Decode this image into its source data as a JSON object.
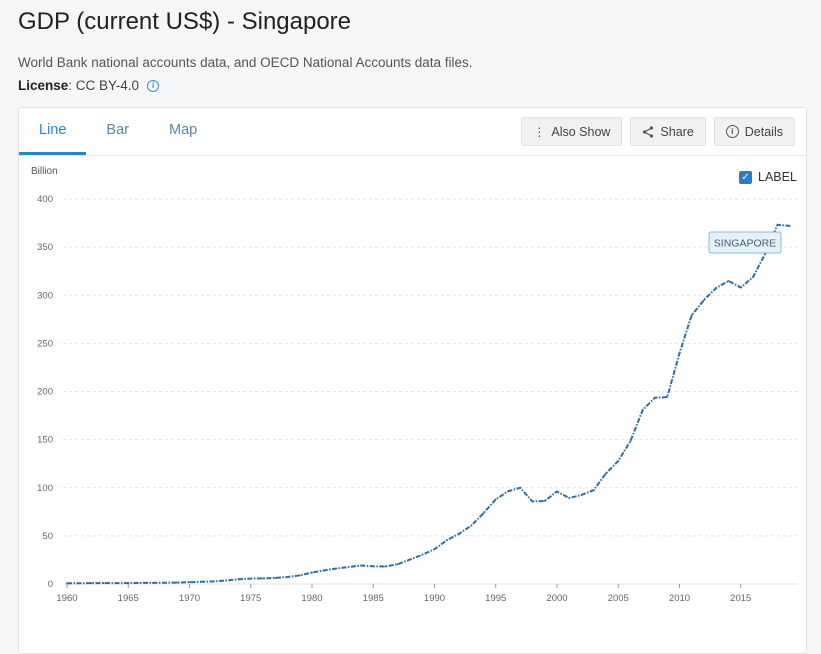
{
  "page": {
    "title": "GDP (current US$) - Singapore",
    "source": "World Bank national accounts data, and OECD National Accounts data files.",
    "license_label": "License",
    "license_value": " : CC BY-4.0",
    "info_icon": "info-icon"
  },
  "tabs": [
    {
      "label": "Line",
      "active": true
    },
    {
      "label": "Bar",
      "active": false
    },
    {
      "label": "Map",
      "active": false
    }
  ],
  "toolbar": {
    "also_show_label": "Also Show",
    "share_label": "Share",
    "details_label": "Details"
  },
  "label_toggle": {
    "label": "LABEL",
    "checked": true
  },
  "colors": {
    "accent": "#2a86c4",
    "line": "#2f6e9e",
    "grid": "#e3e3e3"
  },
  "chart_data": {
    "type": "line",
    "ylabel": "Billion",
    "xlabel": "",
    "ylim": [
      0,
      400
    ],
    "xlim": [
      1960,
      2020
    ],
    "yticks": [
      0,
      50,
      100,
      150,
      200,
      250,
      300,
      350,
      400
    ],
    "xticks": [
      1960,
      1965,
      1970,
      1975,
      1980,
      1985,
      1990,
      1995,
      2000,
      2005,
      2010,
      2015
    ],
    "grid": true,
    "series": [
      {
        "name": "SINGAPORE",
        "x": [
          1960,
          1961,
          1962,
          1963,
          1964,
          1965,
          1966,
          1967,
          1968,
          1969,
          1970,
          1971,
          1972,
          1973,
          1974,
          1975,
          1976,
          1977,
          1978,
          1979,
          1980,
          1981,
          1982,
          1983,
          1984,
          1985,
          1986,
          1987,
          1988,
          1989,
          1990,
          1991,
          1992,
          1993,
          1994,
          1995,
          1996,
          1997,
          1998,
          1999,
          2000,
          2001,
          2002,
          2003,
          2004,
          2005,
          2006,
          2007,
          2008,
          2009,
          2010,
          2011,
          2012,
          2013,
          2014,
          2015,
          2016,
          2017,
          2018,
          2019
        ],
        "values": [
          0.7,
          0.8,
          0.9,
          1.0,
          0.9,
          1.0,
          1.1,
          1.2,
          1.3,
          1.5,
          1.9,
          2.3,
          2.7,
          3.7,
          4.9,
          5.6,
          5.8,
          6.3,
          7.3,
          8.9,
          11.9,
          14.2,
          16.1,
          17.7,
          19.2,
          18.4,
          18.2,
          20.6,
          25.4,
          30.4,
          36.1,
          45.5,
          52.1,
          60.6,
          73.6,
          87.9,
          96.3,
          100.0,
          85.7,
          86.3,
          96.1,
          89.3,
          92.5,
          97.6,
          115.0,
          127.8,
          148.6,
          180.9,
          193.6,
          194.2,
          239.8,
          279.4,
          295.1,
          307.6,
          314.9,
          308.0,
          318.8,
          343.3,
          373.2,
          372.1
        ]
      }
    ]
  }
}
